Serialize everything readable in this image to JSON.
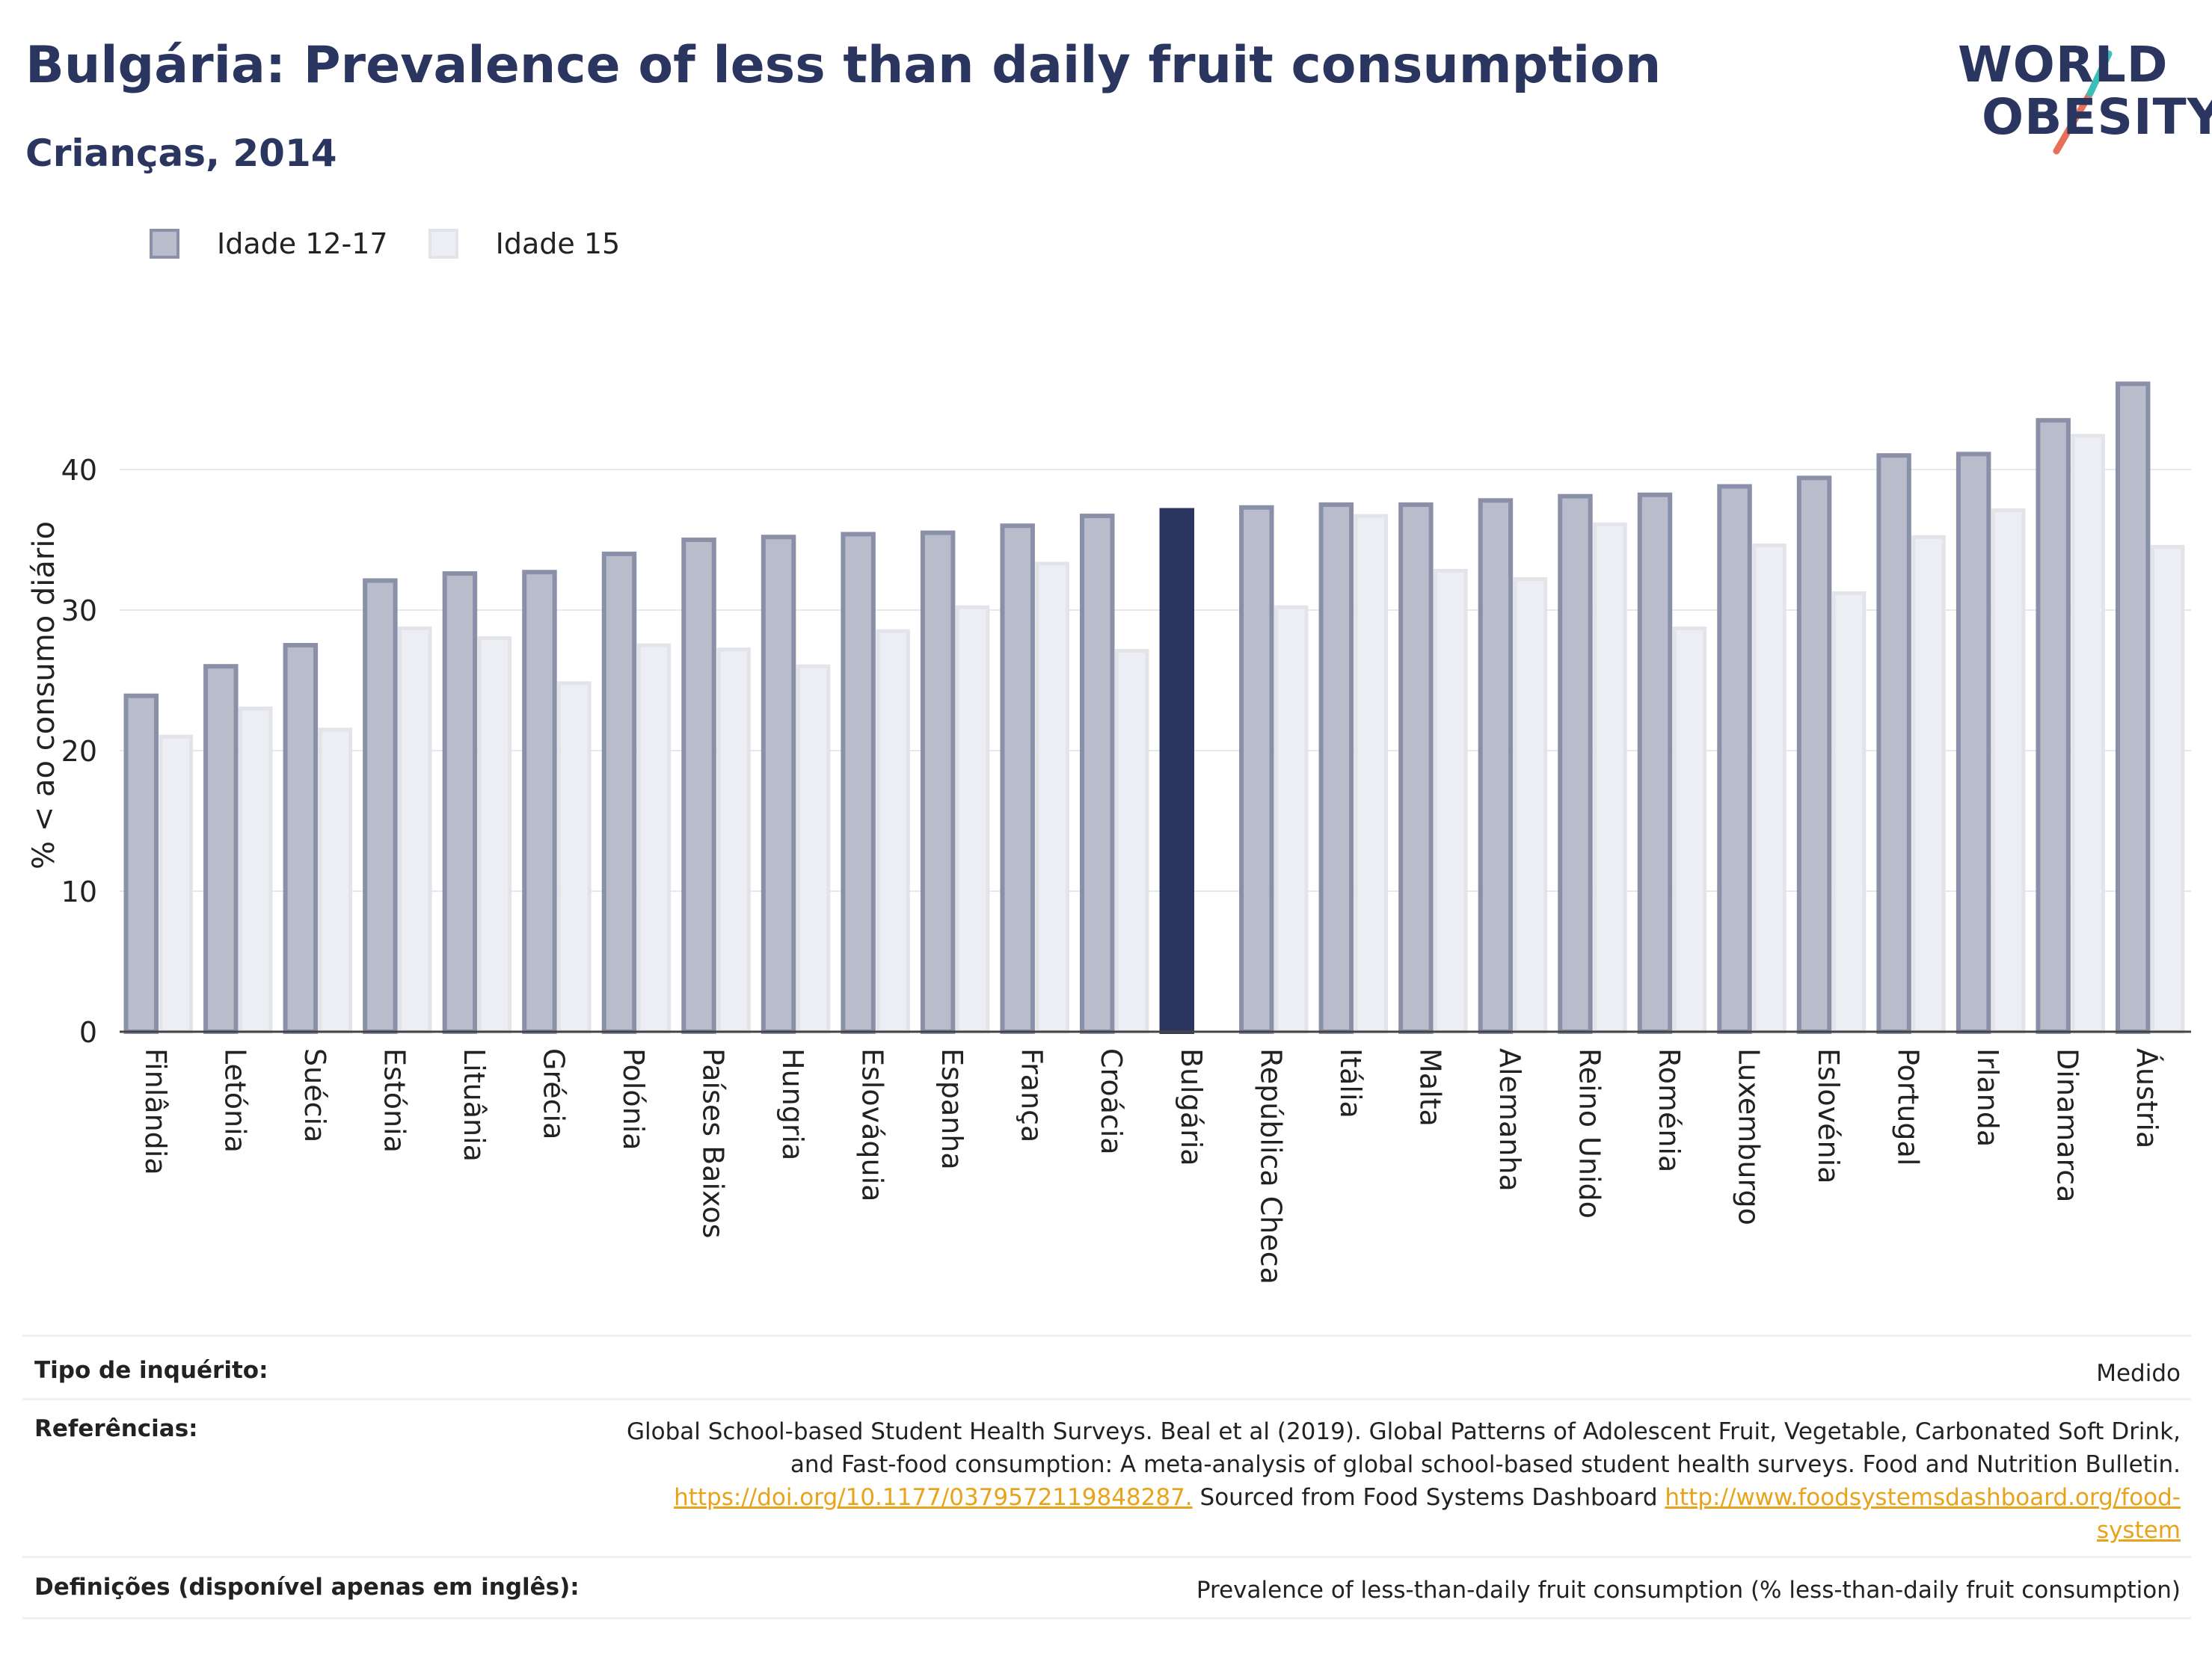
{
  "header": {
    "title": "Bulgária: Prevalence of less than daily fruit consumption",
    "subtitle": "Crianças, 2014"
  },
  "logo": {
    "line1": "WORLD",
    "line2": "OBESITY"
  },
  "colors": {
    "series_a_fill": "#b9bccb",
    "series_a_stroke": "#8a90a8",
    "series_b_fill": "#eceef3",
    "series_b_stroke": "#e2e4ea",
    "highlight": "#2b3660",
    "grid": "#e6e8ee",
    "logo_teal": "#3bbfb7",
    "logo_coral": "#e8705a"
  },
  "chart_data": {
    "type": "bar",
    "title": "Bulgária: Prevalence of less than daily fruit consumption",
    "subtitle": "Crianças, 2014",
    "ylabel": "% < ao consumo diário",
    "xlabel": "",
    "ylim": [
      0,
      50
    ],
    "yticks": [
      0,
      10,
      20,
      30,
      40
    ],
    "grid": true,
    "legend": "top-left",
    "highlight_category": "Bulgária",
    "categories": [
      "Finlândia",
      "Letónia",
      "Suécia",
      "Estónia",
      "Lituânia",
      "Grécia",
      "Polónia",
      "Países Baixos",
      "Hungria",
      "Eslováquia",
      "Espanha",
      "França",
      "Croácia",
      "Bulgária",
      "República Checa",
      "Itália",
      "Malta",
      "Alemanha",
      "Reino Unido",
      "Roménia",
      "Luxemburgo",
      "Eslovénia",
      "Portugal",
      "Irlanda",
      "Dinamarca",
      "Áustria"
    ],
    "series": [
      {
        "name": "Idade 12-17",
        "values": [
          23.9,
          26.0,
          27.5,
          32.1,
          32.6,
          32.7,
          34.0,
          35.0,
          35.2,
          35.4,
          35.5,
          36.0,
          36.7,
          37.1,
          37.3,
          37.5,
          37.5,
          37.8,
          38.1,
          38.2,
          38.8,
          39.4,
          41.0,
          41.1,
          43.5,
          46.1
        ]
      },
      {
        "name": "Idade 15",
        "values": [
          21.0,
          23.0,
          21.5,
          28.7,
          28.0,
          24.8,
          27.5,
          27.2,
          26.0,
          28.5,
          30.2,
          33.3,
          27.1,
          null,
          30.2,
          36.7,
          32.8,
          32.2,
          36.1,
          28.7,
          34.6,
          31.2,
          35.2,
          37.1,
          42.4,
          34.5
        ]
      }
    ]
  },
  "footer": {
    "survey_label": "Tipo de inquérito:",
    "survey_value": "Medido",
    "refs_label": "Referências:",
    "refs_line1": "Global School-based Student Health Surveys. Beal et al (2019). Global Patterns of Adolescent Fruit, Vegetable, Carbonated Soft Drink,",
    "refs_line2": "and Fast-food consumption: A meta-analysis of global school-based student health surveys. Food and Nutrition Bulletin.",
    "refs_link1": "https://doi.org/10.1177/0379572119848287.",
    "refs_mid": " Sourced from Food Systems Dashboard ",
    "refs_link2a": "http://www.foodsystemsdashboard.org/food-",
    "refs_link2b": "system",
    "defs_label": "Definições (disponível apenas em inglês):",
    "defs_value": "Prevalence of less-than-daily fruit consumption (% less-than-daily fruit consumption)"
  }
}
